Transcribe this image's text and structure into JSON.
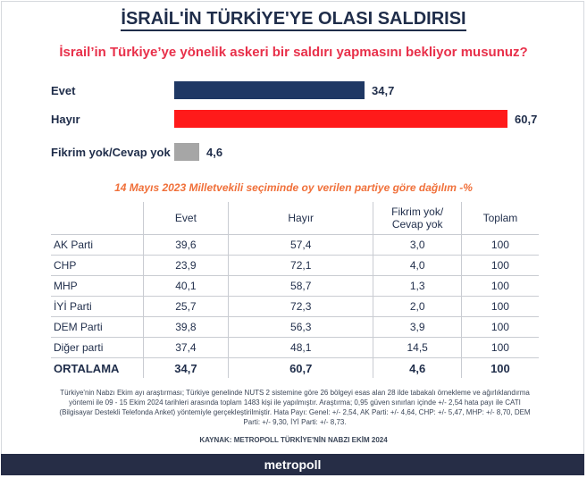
{
  "header": {
    "title": "İSRAİL'İN TÜRKİYE'YE OLASI SALDIRISI",
    "question": "İsrail’in Türkiye’ye yönelik askeri bir saldırı yapmasını bekliyor musunuz?"
  },
  "chart_data": {
    "type": "bar",
    "orientation": "horizontal",
    "categories": [
      "Evet",
      "Hayır",
      "Fikrim yok/Cevap yok"
    ],
    "values": [
      34.7,
      60.7,
      4.6
    ],
    "value_labels": [
      "34,7",
      "60,7",
      "4,6"
    ],
    "colors": [
      "#1f3864",
      "#ff1a1a",
      "#a6a6a6"
    ],
    "title": "İsrail’in Türkiye’ye yönelik askeri bir saldırı yapmasını bekliyor musunuz?",
    "xlabel": "",
    "ylabel": "",
    "xlim": [
      0,
      60.7
    ],
    "grid": false,
    "legend": "none"
  },
  "table": {
    "subtitle": "14 Mayıs 2023 Milletvekili seçiminde oy verilen partiye göre dağılım -%",
    "headers": {
      "party": "",
      "evet": "Evet",
      "hayir": "Hayır",
      "fikrim_line1": "Fikrim yok/",
      "fikrim_line2": "Cevap yok",
      "toplam": "Toplam"
    },
    "rows": [
      {
        "party": "AK Parti",
        "evet": "39,6",
        "hayir": "57,4",
        "fikrim": "3,0",
        "toplam": "100"
      },
      {
        "party": "CHP",
        "evet": "23,9",
        "hayir": "72,1",
        "fikrim": "4,0",
        "toplam": "100"
      },
      {
        "party": "MHP",
        "evet": "40,1",
        "hayir": "58,7",
        "fikrim": "1,3",
        "toplam": "100"
      },
      {
        "party": "İYİ Parti",
        "evet": "25,7",
        "hayir": "72,3",
        "fikrim": "2,0",
        "toplam": "100"
      },
      {
        "party": "DEM Parti",
        "evet": "39,8",
        "hayir": "56,3",
        "fikrim": "3,9",
        "toplam": "100"
      },
      {
        "party": "Diğer parti",
        "evet": "37,4",
        "hayir": "48,1",
        "fikrim": "14,5",
        "toplam": "100"
      },
      {
        "party": "ORTALAMA",
        "evet": "34,7",
        "hayir": "60,7",
        "fikrim": "4,6",
        "toplam": "100"
      }
    ]
  },
  "methodology": {
    "note": "Türkiye'nin Nabzı Ekim ayı araştırması; Türkiye genelinde NUTS 2 sistemine göre 26 bölgeyi esas alan 28 ilde tabakalı örnekleme ve ağırlıklandırma yöntemi ile 09 - 15 Ekim 2024 tarihleri arasında toplam 1483 kişi ile yapılmıştır. Araştırma; 0,95 güven sınırları içinde +/- 2,54 hata payı ile CATI (Bilgisayar Destekli Telefonda Anket) yöntemiyle gerçekleştirilmiştir. Hata Payı: Genel: +/- 2,54, AK Parti: +/- 4,64, CHP: +/- 5,47, MHP: +/- 8,70, DEM Parti: +/- 9,30, İYİ Parti: +/- 8,73.",
    "source": "KAYNAK: METROPOLL TÜRKİYE'NİN NABZI EKİM 2024"
  },
  "footer": {
    "brand": "metropoll"
  }
}
